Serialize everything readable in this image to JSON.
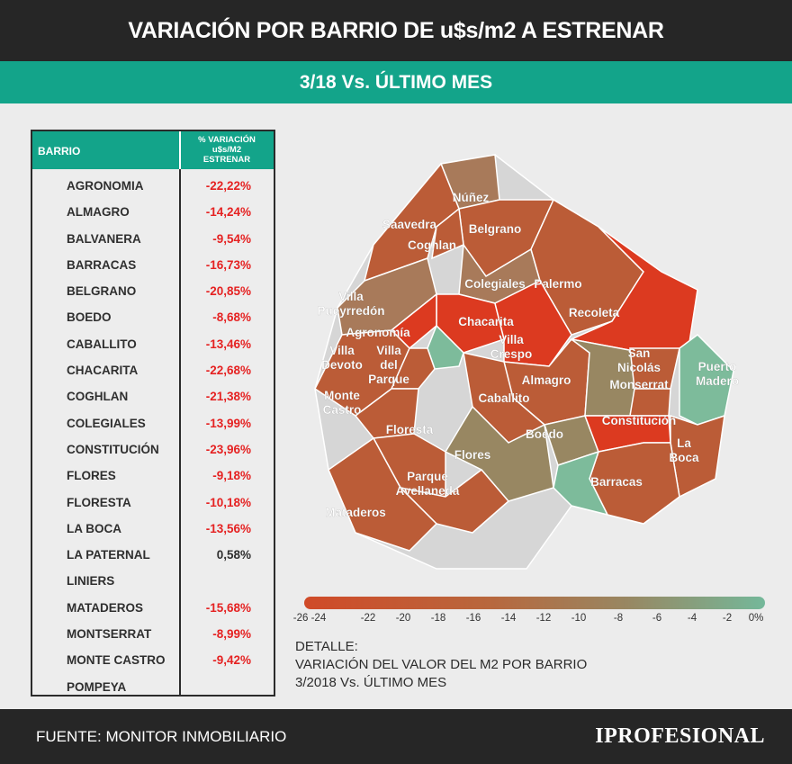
{
  "header": {
    "title": "VARIACIÓN POR BARRIO DE u$s/m2 A ESTRENAR",
    "subtitle": "3/18 Vs. ÚLTIMO MES"
  },
  "table": {
    "col_barrio": "BARRIO",
    "col_variation_lines": [
      "% VARIACIÓN",
      "u$s/M2",
      "ESTRENAR"
    ],
    "rows": [
      {
        "barrio": "AGRONOMIA",
        "valor": "-22,22%"
      },
      {
        "barrio": "ALMAGRO",
        "valor": "-14,24%"
      },
      {
        "barrio": "BALVANERA",
        "valor": "-9,54%"
      },
      {
        "barrio": "BARRACAS",
        "valor": "-16,73%"
      },
      {
        "barrio": "BELGRANO",
        "valor": "-20,85%"
      },
      {
        "barrio": "BOEDO",
        "valor": "-8,68%"
      },
      {
        "barrio": "CABALLITO",
        "valor": "-13,46%"
      },
      {
        "barrio": "CHACARITA",
        "valor": "-22,68%"
      },
      {
        "barrio": "COGHLAN",
        "valor": "-21,38%"
      },
      {
        "barrio": "COLEGIALES",
        "valor": "-13,99%"
      },
      {
        "barrio": "CONSTITUCIÓN",
        "valor": "-23,96%"
      },
      {
        "barrio": "FLORES",
        "valor": "-9,18%"
      },
      {
        "barrio": "FLORESTA",
        "valor": "-10,18%"
      },
      {
        "barrio": "LA BOCA",
        "valor": "-13,56%"
      },
      {
        "barrio": "LA PATERNAL",
        "valor": "0,58%"
      },
      {
        "barrio": "LINIERS",
        "valor": ""
      },
      {
        "barrio": "MATADEROS",
        "valor": "-15,68%"
      },
      {
        "barrio": "MONTSERRAT",
        "valor": "-8,99%"
      },
      {
        "barrio": "MONTE CASTRO",
        "valor": "-9,42%"
      },
      {
        "barrio": "POMPEYA",
        "valor": ""
      }
    ]
  },
  "chart_data": {
    "type": "table",
    "categories": [
      "AGRONOMIA",
      "ALMAGRO",
      "BALVANERA",
      "BARRACAS",
      "BELGRANO",
      "BOEDO",
      "CABALLITO",
      "CHACARITA",
      "COGHLAN",
      "COLEGIALES",
      "CONSTITUCIÓN",
      "FLORES",
      "FLORESTA",
      "LA BOCA",
      "LA PATERNAL",
      "LINIERS",
      "MATADEROS",
      "MONTSERRAT",
      "MONTE CASTRO",
      "POMPEYA"
    ],
    "values": [
      -22.22,
      -14.24,
      -9.54,
      -16.73,
      -20.85,
      -8.68,
      -13.46,
      -22.68,
      -21.38,
      -13.99,
      -23.96,
      -9.18,
      -10.18,
      -13.56,
      0.58,
      null,
      -15.68,
      -8.99,
      -9.42,
      null
    ],
    "map_labels": [
      "Núñez",
      "Saavedra",
      "Belgrano",
      "Coghlan",
      "Colegiales",
      "Palermo",
      "Villa Pueyrredón",
      "Chacarita",
      "Recoleta",
      "Agronomía",
      "Villa Crespo",
      "Villa Devoto",
      "Villa del Parque",
      "San Nicolás",
      "Puerto Madero",
      "Almagro",
      "Monserrat",
      "Monte Castro",
      "Caballito",
      "Constitución",
      "Floresta",
      "Boedo",
      "Flores",
      "La Boca",
      "Parque Avellaneda",
      "Barracas",
      "Mataderos"
    ],
    "color_scale": {
      "ticks": [
        "-26 -24",
        "-22",
        "-20",
        "-18",
        "-16",
        "-14",
        "-12",
        "-10",
        "-8",
        "-6",
        "-4",
        "-2",
        "0%"
      ],
      "colors": {
        "low": "#d04a28",
        "mid": "#988762",
        "high": "#74b89a",
        "no_data": "#d6d6d6"
      }
    }
  },
  "detalle": {
    "lines": [
      "DETALLE:",
      "VARIACIÓN DEL VALOR DEL M2 POR BARRIO",
      "3/2018 Vs. ÚLTIMO MES"
    ]
  },
  "footer": {
    "source": "FUENTE: MONITOR INMOBILIARIO",
    "logo": "IPROFESIONAL"
  }
}
